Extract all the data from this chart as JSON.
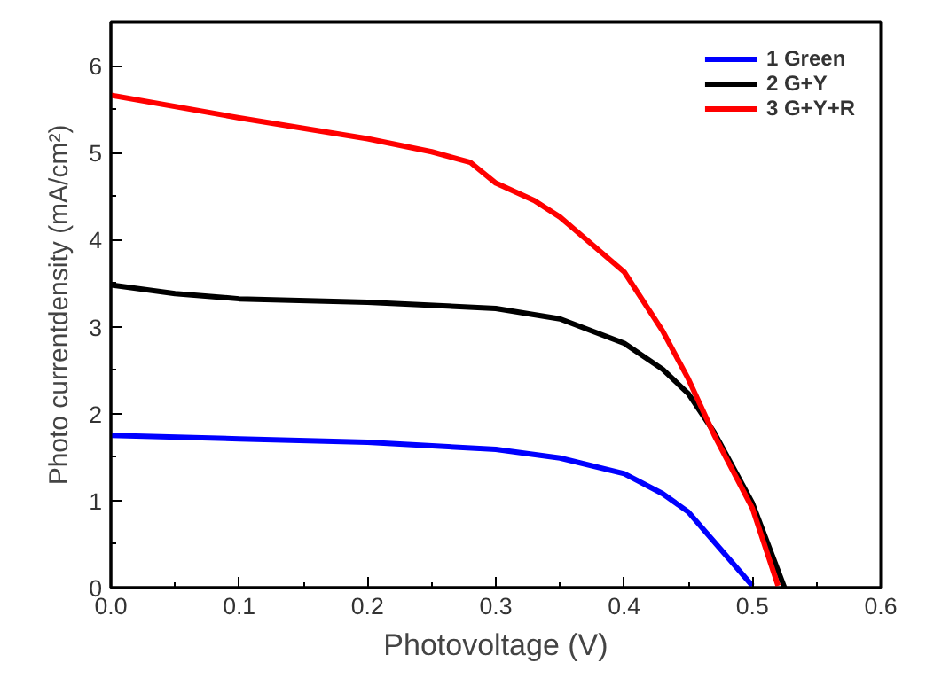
{
  "chart_data": {
    "type": "line",
    "xlabel": "Photovoltage (V)",
    "ylabel": "Photo currentdensity (mA/cm²)",
    "xlim": [
      0,
      0.6
    ],
    "ylim": [
      0,
      6.5
    ],
    "xticks": [
      {
        "value": 0,
        "label": "0.0"
      },
      0.1,
      0.2,
      0.3,
      0.4,
      0.5,
      0.6
    ],
    "yticks": [
      0,
      1,
      2,
      3,
      4,
      5,
      6
    ],
    "grid": false,
    "legend": "top right",
    "marker": "none",
    "line_style": "solid",
    "series": [
      {
        "name": "1 Green",
        "color": "#0000ff",
        "x": [
          0,
          0.1,
          0.2,
          0.3,
          0.35,
          0.4,
          0.43,
          0.45,
          0.47,
          0.5
        ],
        "values": [
          1.75,
          1.71,
          1.67,
          1.59,
          1.49,
          1.31,
          1.08,
          0.87,
          0.53,
          0.02
        ]
      },
      {
        "name": "2 G+Y",
        "color": "#000000",
        "x": [
          0,
          0.05,
          0.1,
          0.2,
          0.3,
          0.35,
          0.4,
          0.43,
          0.45,
          0.47,
          0.5,
          0.525
        ],
        "values": [
          3.48,
          3.38,
          3.32,
          3.28,
          3.21,
          3.09,
          2.81,
          2.51,
          2.23,
          1.79,
          0.97,
          0
        ]
      },
      {
        "name": "3 G+Y+R",
        "color": "#ff0000",
        "x": [
          0,
          0.1,
          0.2,
          0.25,
          0.28,
          0.3,
          0.33,
          0.35,
          0.4,
          0.43,
          0.45,
          0.47,
          0.5,
          0.52
        ],
        "values": [
          5.66,
          5.4,
          5.16,
          5.01,
          4.89,
          4.65,
          4.45,
          4.26,
          3.63,
          2.95,
          2.4,
          1.76,
          0.91,
          0.02
        ]
      }
    ]
  }
}
